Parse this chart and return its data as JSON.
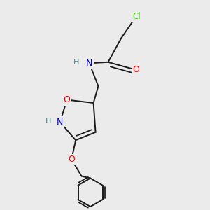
{
  "background_color": "#ebebeb",
  "atom_colors": {
    "C": "#000000",
    "Cl": "#33cc00",
    "O": "#ff0000",
    "N": "#0000cc",
    "H": "#4a8080"
  },
  "bond_color": "#1a1a1a",
  "bond_width": 1.4,
  "figsize": [
    3.0,
    3.0
  ],
  "dpi": 100
}
